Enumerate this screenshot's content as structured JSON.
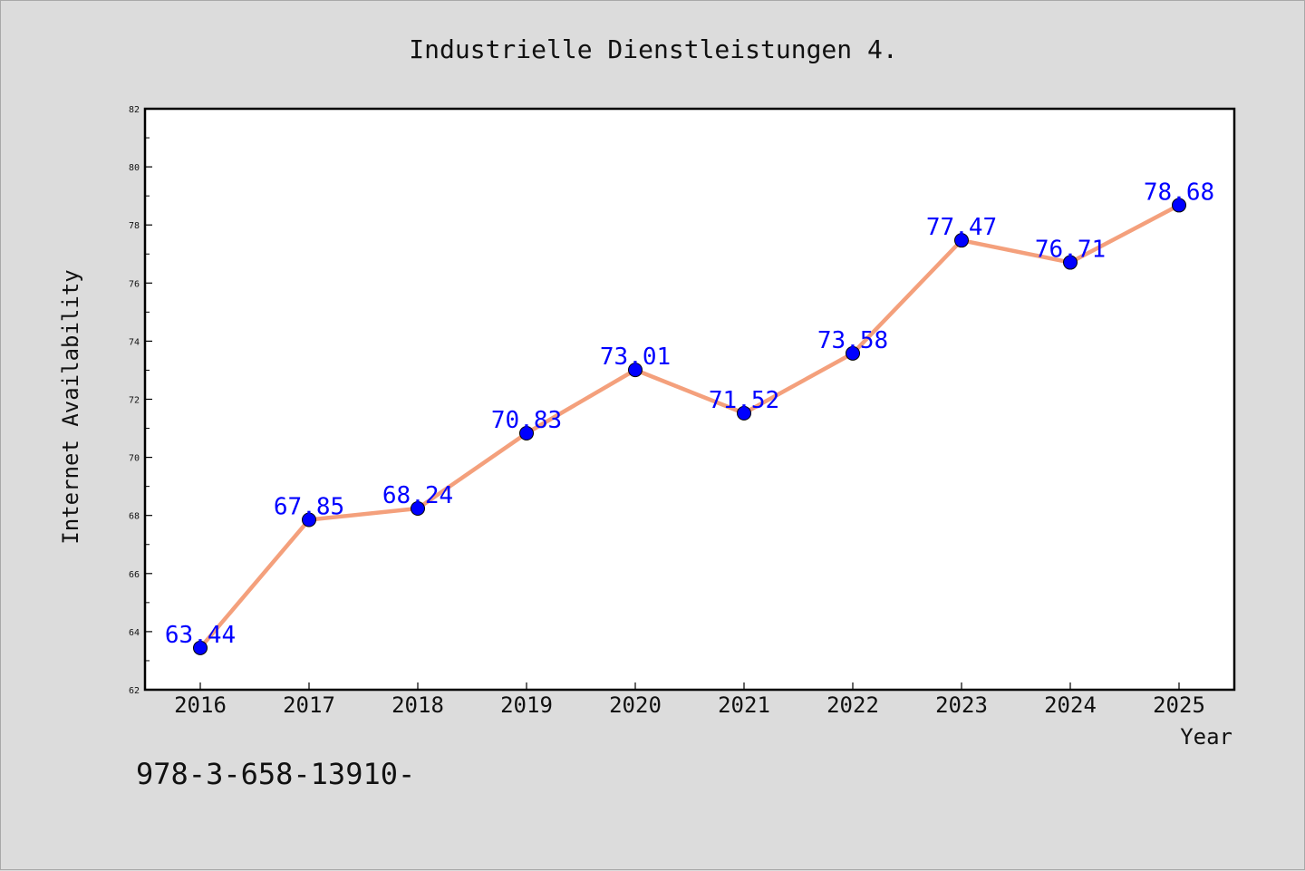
{
  "chart_data": {
    "type": "line",
    "title": "Industrielle Dienstleistungen 4.",
    "xlabel": "Year",
    "ylabel": "Internet Availability",
    "categories": [
      "2016",
      "2017",
      "2018",
      "2019",
      "2020",
      "2021",
      "2022",
      "2023",
      "2024",
      "2025"
    ],
    "series": [
      {
        "values": [
          63.44,
          67.85,
          68.24,
          70.83,
          73.01,
          71.52,
          73.58,
          77.47,
          76.71,
          78.68
        ],
        "labels": [
          "63.44",
          "67.85",
          "68.24",
          "70.83",
          "73.01",
          "71.52",
          "73.58",
          "77.47",
          "76.71",
          "78.68"
        ],
        "line_color": "#f4a07c",
        "marker_color": "#0000ff"
      }
    ],
    "ylim": [
      62,
      82
    ],
    "yticks": [
      "62",
      "64",
      "66",
      "68",
      "70",
      "72",
      "74",
      "76",
      "78",
      "80",
      "82"
    ],
    "grid": false,
    "legend": "none"
  },
  "footer_text": "978-3-658-13910-",
  "colors": {
    "background": "#dcdcdc",
    "plot_background": "#ffffff",
    "axis": "#000000"
  }
}
